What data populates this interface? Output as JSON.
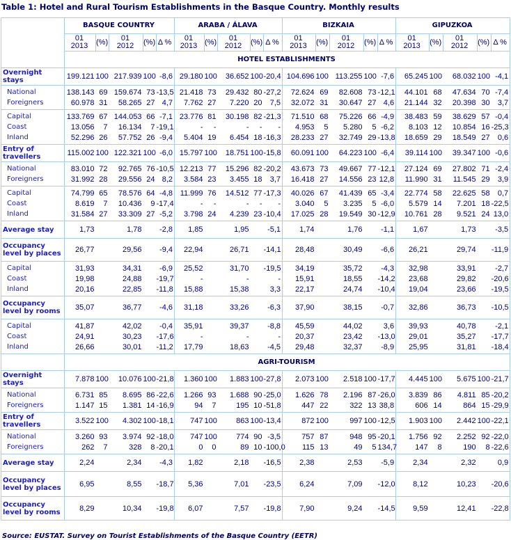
{
  "title": "Table 1: Hotel and Rural Tourism Establishments in the Basque Country. Monthly results",
  "regions": [
    "BASQUE COUNTRY",
    "ARABA / ÁLAVA",
    "BIZKAIA",
    "GIPUZKOA"
  ],
  "subheaders": [
    "01\n2013",
    "(%)",
    "01\n2012",
    "(%)",
    "Δ %"
  ],
  "colors": {
    "text": "#000080",
    "label": "#1c1cc8",
    "border": "#a8cbf0"
  },
  "sections": [
    {
      "name": "HOTEL ESTABLISHMENTS",
      "blocks": [
        [
          {
            "label": "Overnight stays",
            "main": true,
            "v": [
              "199.121",
              "100",
              "217.939",
              "100",
              "-8,6",
              "29.180",
              "100",
              "36.652",
              "100",
              "-20,4",
              "104.696",
              "100",
              "113.255",
              "100",
              "-7,6",
              "65.245",
              "100",
              "68.032",
              "100",
              "-4,1"
            ]
          }
        ],
        [
          {
            "label": "National",
            "v": [
              "138.143",
              "69",
              "159.674",
              "73",
              "-13,5",
              "21.418",
              "73",
              "29.432",
              "80",
              "-27,2",
              "72.624",
              "69",
              "82.608",
              "73",
              "-12,1",
              "44.101",
              "68",
              "47.634",
              "70",
              "-7,4"
            ]
          },
          {
            "label": "Foreigners",
            "v": [
              "60.978",
              "31",
              "58.265",
              "27",
              "4,7",
              "7.762",
              "27",
              "7.220",
              "20",
              "7,5",
              "32.072",
              "31",
              "30.647",
              "27",
              "4,6",
              "21.144",
              "32",
              "20.398",
              "30",
              "3,7"
            ]
          }
        ],
        [
          {
            "label": "Capital",
            "v": [
              "133.769",
              "67",
              "144.053",
              "66",
              "-7,1",
              "23.776",
              "81",
              "30.198",
              "82",
              "-21,3",
              "71.510",
              "68",
              "75.226",
              "66",
              "-4,9",
              "38.483",
              "59",
              "38.629",
              "57",
              "-0,4"
            ]
          },
          {
            "label": "Coast",
            "v": [
              "13.056",
              "7",
              "16.134",
              "7",
              "-19,1",
              "-",
              "-",
              "-",
              "-",
              "-",
              "4.953",
              "5",
              "5.280",
              "5",
              "-6,2",
              "8.103",
              "12",
              "10.854",
              "16",
              "-25,3"
            ]
          },
          {
            "label": "Inland",
            "v": [
              "52.296",
              "26",
              "57.752",
              "26",
              "-9,4",
              "5.404",
              "19",
              "6.454",
              "18",
              "-16,3",
              "28.233",
              "27",
              "32.749",
              "29",
              "-13,8",
              "18.659",
              "29",
              "18.549",
              "27",
              "0,6"
            ]
          }
        ],
        [
          {
            "label": "Entry of travellers",
            "main": true,
            "v": [
              "115.002",
              "100",
              "122.321",
              "100",
              "-6,0",
              "15.797",
              "100",
              "18.751",
              "100",
              "-15,8",
              "60.091",
              "100",
              "64.223",
              "100",
              "-6,4",
              "39.114",
              "100",
              "39.347",
              "100",
              "-0,6"
            ]
          }
        ],
        [
          {
            "label": "National",
            "v": [
              "83.010",
              "72",
              "92.765",
              "76",
              "-10,5",
              "12.213",
              "77",
              "15.296",
              "82",
              "-20,2",
              "43.673",
              "73",
              "49.667",
              "77",
              "-12,1",
              "27.124",
              "69",
              "27.802",
              "71",
              "-2,4"
            ]
          },
          {
            "label": "Foreigners",
            "v": [
              "31.992",
              "28",
              "29.556",
              "24",
              "8,2",
              "3.584",
              "23",
              "3.455",
              "18",
              "3,7",
              "16.418",
              "27",
              "14.556",
              "23",
              "12,8",
              "11.990",
              "31",
              "11.545",
              "29",
              "3,9"
            ]
          }
        ],
        [
          {
            "label": "Capital",
            "v": [
              "74.799",
              "65",
              "78.576",
              "64",
              "-4,8",
              "11.999",
              "76",
              "14.512",
              "77",
              "-17,3",
              "40.026",
              "67",
              "41.439",
              "65",
              "-3,4",
              "22.774",
              "58",
              "22.625",
              "58",
              "0,7"
            ]
          },
          {
            "label": "Coast",
            "v": [
              "8.619",
              "7",
              "10.436",
              "9",
              "-17,4",
              "-",
              "-",
              "-",
              "-",
              "-",
              "3.040",
              "5",
              "3.235",
              "5",
              "-6,0",
              "5.579",
              "14",
              "7.201",
              "18",
              "-22,5"
            ]
          },
          {
            "label": "Inland",
            "v": [
              "31.584",
              "27",
              "33.309",
              "27",
              "-5,2",
              "3.798",
              "24",
              "4.239",
              "23",
              "-10,4",
              "17.025",
              "28",
              "19.549",
              "30",
              "-12,9",
              "10.761",
              "28",
              "9.521",
              "24",
              "13,0"
            ]
          }
        ],
        [
          {
            "label": "Average stay",
            "main": true,
            "h": 24,
            "v": [
              "1,73",
              "",
              "1,78",
              "",
              "-2,8",
              "1,85",
              "",
              "1,95",
              "",
              "-5,1",
              "1,74",
              "",
              "1,76",
              "",
              "-1,1",
              "1,67",
              "",
              "1,73",
              "",
              "-3,5"
            ]
          }
        ],
        [
          {
            "label": "Occupancy level by places",
            "main": true,
            "h": 32,
            "v": [
              "26,77",
              "",
              "29,56",
              "",
              "-9,4",
              "22,94",
              "",
              "26,71",
              "",
              "-14,1",
              "28,48",
              "",
              "30,49",
              "",
              "-6,6",
              "26,21",
              "",
              "29,74",
              "",
              "-11,9"
            ]
          }
        ],
        [
          {
            "label": "Capital",
            "v": [
              "31,93",
              "",
              "34,31",
              "",
              "-6,9",
              "25,52",
              "",
              "31,70",
              "",
              "-19,5",
              "34,19",
              "",
              "35,72",
              "",
              "-4,3",
              "32,98",
              "",
              "33,91",
              "",
              "-2,7"
            ]
          },
          {
            "label": "Coast",
            "v": [
              "19,98",
              "",
              "24,88",
              "",
              "-19,7",
              "-",
              "",
              "-",
              "",
              "-",
              "15,91",
              "",
              "18,55",
              "",
              "-14,2",
              "23,68",
              "",
              "29,82",
              "",
              "-20,6"
            ]
          },
          {
            "label": "Inland",
            "v": [
              "20,16",
              "",
              "22,85",
              "",
              "-11,8",
              "15,88",
              "",
              "15,38",
              "",
              "3,3",
              "22,17",
              "",
              "24,74",
              "",
              "-10,4",
              "19,04",
              "",
              "23,66",
              "",
              "-19,5"
            ]
          }
        ],
        [
          {
            "label": "Occupancy level by rooms",
            "main": true,
            "h": 32,
            "v": [
              "35,07",
              "",
              "36,77",
              "",
              "-4,6",
              "31,18",
              "",
              "33,26",
              "",
              "-6,3",
              "37,90",
              "",
              "38,15",
              "",
              "-0,7",
              "32,86",
              "",
              "36,73",
              "",
              "-10,5"
            ]
          }
        ],
        [
          {
            "label": "Capital",
            "v": [
              "41,87",
              "",
              "42,02",
              "",
              "-0,4",
              "35,91",
              "",
              "39,37",
              "",
              "-8,8",
              "45,59",
              "",
              "44,02",
              "",
              "3,6",
              "39,93",
              "",
              "40,78",
              "",
              "-2,1"
            ]
          },
          {
            "label": "Coast",
            "v": [
              "24,91",
              "",
              "30,23",
              "",
              "-17,6",
              "-",
              "",
              "-",
              "",
              "-",
              "20,37",
              "",
              "23,42",
              "",
              "-13,0",
              "29,01",
              "",
              "35,27",
              "",
              "-17,7"
            ]
          },
          {
            "label": "Inland",
            "v": [
              "26,66",
              "",
              "30,01",
              "",
              "-11,2",
              "17,79",
              "",
              "18,63",
              "",
              "-4,5",
              "29,48",
              "",
              "32,37",
              "",
              "-8,9",
              "25,95",
              "",
              "31,81",
              "",
              "-18,4"
            ]
          }
        ]
      ]
    },
    {
      "name": "AGRI-TOURISM",
      "blocks": [
        [
          {
            "label": "Overnight stays",
            "main": true,
            "v": [
              "7.878",
              "100",
              "10.076",
              "100",
              "-21,8",
              "1.360",
              "100",
              "1.883",
              "100",
              "-27,8",
              "2.073",
              "100",
              "2.518",
              "100",
              "-17,7",
              "4.445",
              "100",
              "5.675",
              "100",
              "-21,7"
            ]
          }
        ],
        [
          {
            "label": "National",
            "v": [
              "6.731",
              "85",
              "8.695",
              "86",
              "-22,6",
              "1.266",
              "93",
              "1.688",
              "90",
              "-25,0",
              "1.626",
              "78",
              "2.196",
              "87",
              "-26,0",
              "3.839",
              "86",
              "4.811",
              "85",
              "-20,2"
            ]
          },
          {
            "label": "Foreigners",
            "v": [
              "1.147",
              "15",
              "1.381",
              "14",
              "-16,9",
              "94",
              "7",
              "195",
              "10",
              "-51,8",
              "447",
              "22",
              "322",
              "13",
              "38,8",
              "606",
              "14",
              "864",
              "15",
              "-29,9"
            ]
          }
        ],
        [
          {
            "label": "Entry of travellers",
            "main": true,
            "v": [
              "3.522",
              "100",
              "4.302",
              "100",
              "-18,1",
              "747",
              "100",
              "863",
              "100",
              "-13,4",
              "872",
              "100",
              "997",
              "100",
              "-12,5",
              "1.903",
              "100",
              "2.442",
              "100",
              "-22,1"
            ]
          }
        ],
        [
          {
            "label": "National",
            "v": [
              "3.260",
              "93",
              "3.974",
              "92",
              "-18,0",
              "747",
              "100",
              "774",
              "90",
              "-3,5",
              "757",
              "87",
              "948",
              "95",
              "-20,1",
              "1.756",
              "92",
              "2.252",
              "92",
              "-22,0"
            ]
          },
          {
            "label": "Foreigners",
            "v": [
              "262",
              "7",
              "328",
              "8",
              "-20,1",
              "0",
              "0",
              "89",
              "10",
              "-100,0",
              "115",
              "13",
              "49",
              "5",
              "134,7",
              "147",
              "8",
              "190",
              "8",
              "-22,6"
            ]
          }
        ],
        [
          {
            "label": "Average stay",
            "main": true,
            "h": 24,
            "v": [
              "2,24",
              "",
              "2,34",
              "",
              "-4,3",
              "1,82",
              "",
              "2,18",
              "",
              "-16,5",
              "2,38",
              "",
              "2,53",
              "",
              "-5,9",
              "2,34",
              "",
              "2,32",
              "",
              "0,9"
            ]
          }
        ],
        [
          {
            "label": "Occupancy level by places",
            "main": true,
            "h": 35,
            "v": [
              "6,95",
              "",
              "8,55",
              "",
              "-18,7",
              "5,36",
              "",
              "7,01",
              "",
              "-23,5",
              "6,24",
              "",
              "7,09",
              "",
              "-12,0",
              "8,12",
              "",
              "10,23",
              "",
              "-20,6"
            ]
          }
        ],
        [
          {
            "label": "Occupancy level by rooms",
            "main": true,
            "h": 33,
            "v": [
              "8,29",
              "",
              "10,34",
              "",
              "-19,8",
              "6,07",
              "",
              "7,57",
              "",
              "-19,8",
              "7,90",
              "",
              "9,24",
              "",
              "-14,5",
              "9,59",
              "",
              "12,41",
              "",
              "-22,8"
            ]
          }
        ]
      ]
    }
  ],
  "source": "Source: EUSTAT. Survey on Tourist Establishments of the Basque Country (EETR)"
}
